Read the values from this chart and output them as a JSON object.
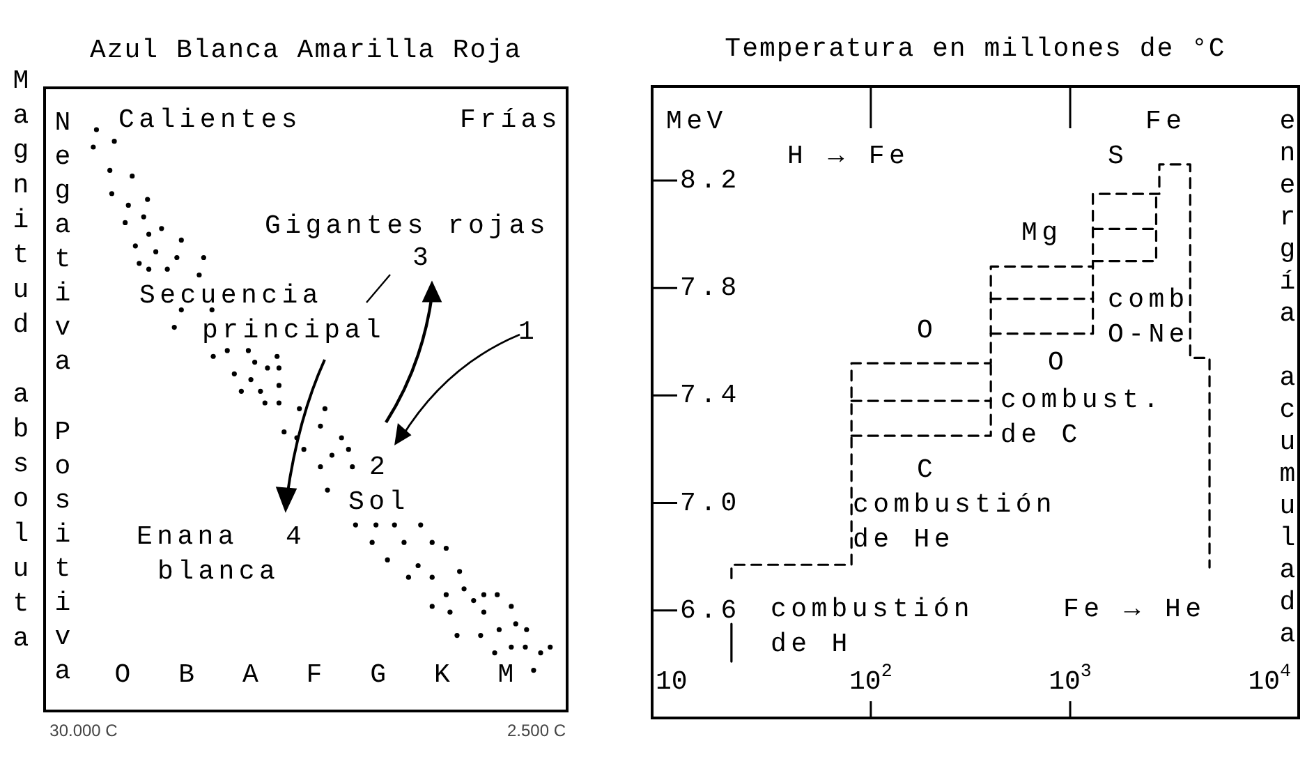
{
  "chart_data": [
    {
      "type": "other",
      "title": "Azul Blanca Amarilla Roja",
      "ylabel": "Magnitud absoluta",
      "categories": [
        "O",
        "B",
        "A",
        "F",
        "G",
        "K",
        "M"
      ],
      "annotations": [
        "Negativa",
        "Positiva",
        "30.000 C",
        "2.500 C",
        "Calientes",
        "Frías",
        "Gigantes rojas",
        "3",
        "1",
        "Secuencia",
        "principal",
        "2",
        "Sol",
        "Enana",
        "4",
        "blanca"
      ]
    },
    {
      "type": "line",
      "title": "Temperatura en millones de °C",
      "ylabel": "MeV",
      "y2label": "energía acumulada",
      "log": "x",
      "line_style": "dashed",
      "xlim": [
        8,
        14000
      ],
      "xticks": [
        10,
        {
          "value": 100,
          "label": "10$^{2}$"
        },
        {
          "value": 1000,
          "label": "10$^{3}$"
        },
        {
          "value": 10000,
          "label": "10$^{4}$"
        }
      ],
      "ylim": [
        6.2,
        8.55
      ],
      "yticks": [
        6.6,
        {
          "value": 7,
          "label": "7.0"
        },
        7.4,
        7.8,
        8.2
      ],
      "series": [
        {
          "color": "#000000",
          "x": [
            20,
            20,
            80,
            80,
            400,
            400,
            1300,
            1300,
            2800,
            2800,
            4000,
            4000,
            5000,
            5000
          ],
          "values": [
            6.72,
            6.77,
            6.77,
            7.52,
            7.52,
            7.88,
            7.88,
            8.15,
            8.15,
            8.26,
            8.26,
            7.54,
            7.54,
            6.76
          ]
        },
        {
          "color": "#000000",
          "line_style": "solid",
          "x": [
            20,
            20
          ],
          "values": [
            6.41,
            6.55
          ]
        },
        {
          "color": "#000000",
          "x": [
            80,
            400,
            400
          ],
          "values": [
            7.25,
            7.25,
            7.52
          ]
        },
        {
          "color": "#000000",
          "x": [
            80,
            400
          ],
          "values": [
            7.38,
            7.38
          ]
        },
        {
          "color": "#000000",
          "x": [
            400,
            1300,
            1300
          ],
          "values": [
            7.63,
            7.63,
            7.88
          ]
        },
        {
          "color": "#000000",
          "x": [
            400,
            1300
          ],
          "values": [
            7.76,
            7.76
          ]
        },
        {
          "color": "#000000",
          "x": [
            1300,
            2700,
            2700
          ],
          "values": [
            7.9,
            7.9,
            8.15
          ]
        },
        {
          "color": "#000000",
          "x": [
            1300,
            2700
          ],
          "values": [
            8.02,
            8.02
          ]
        }
      ],
      "annotations": [
        "H → Fe",
        "Fe",
        "S",
        "Mg",
        "comb\nO-Ne",
        "O",
        "O",
        "combust.\nde C",
        "C",
        "combustión\nde He",
        "combustión\nde H",
        "Fe → He"
      ]
    }
  ]
}
